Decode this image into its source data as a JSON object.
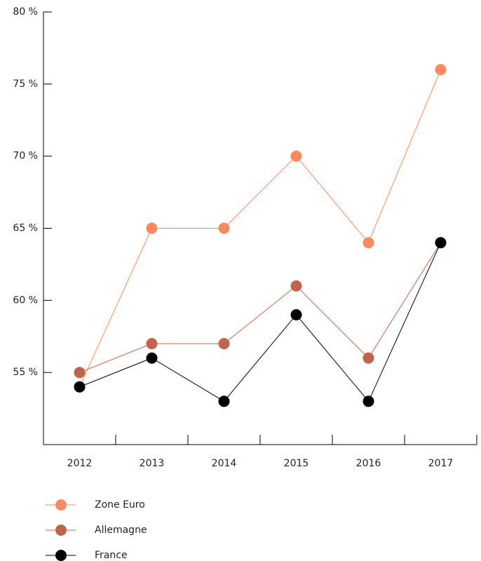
{
  "chart_data": {
    "type": "line",
    "categories": [
      "2012",
      "2013",
      "2014",
      "2015",
      "2016",
      "2017"
    ],
    "series": [
      {
        "name": "Zone Euro",
        "color": "#f98a5f",
        "values": [
          54,
          65,
          65,
          70,
          64,
          76
        ]
      },
      {
        "name": "Allemagne",
        "color": "#c0654b",
        "values": [
          55,
          57,
          57,
          61,
          56,
          64
        ]
      },
      {
        "name": "France",
        "color": "#000000",
        "values": [
          54,
          56,
          53,
          59,
          53,
          64
        ]
      }
    ],
    "ylim": [
      50,
      80
    ],
    "yticks": [
      {
        "value": 55,
        "label": "55 %"
      },
      {
        "value": 60,
        "label": "60 %"
      },
      {
        "value": 65,
        "label": "65 %"
      },
      {
        "value": 70,
        "label": "70 %"
      },
      {
        "value": 75,
        "label": "75 %"
      },
      {
        "value": 80,
        "label": "80 %"
      }
    ]
  }
}
